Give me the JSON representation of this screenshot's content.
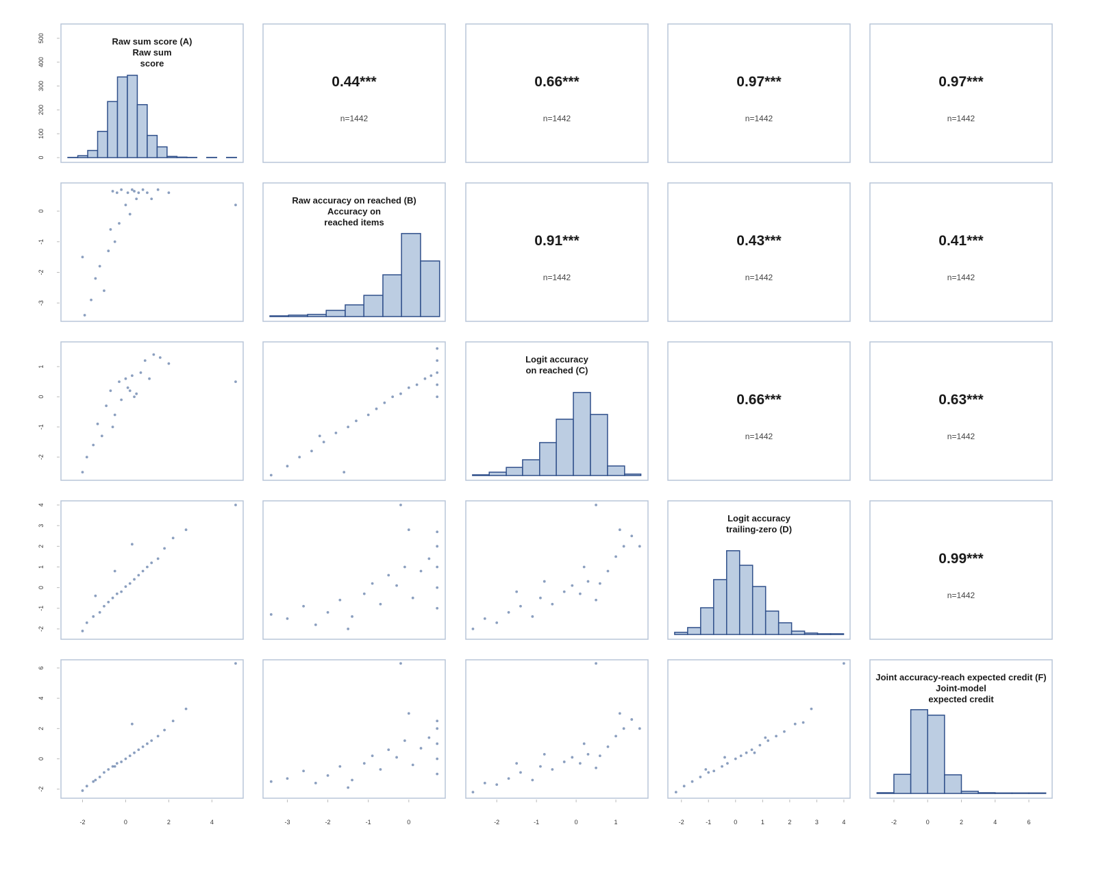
{
  "chart_data": {
    "type": "pairs",
    "color": "#3d5f94",
    "hist_fill": "#bccde2",
    "hist_stroke": "#2f4f8a",
    "frame_color": "#b9c5d8",
    "cols": [
      {
        "xlim": [
          -3.0,
          5.45
        ],
        "xticks": [
          -2,
          0,
          2,
          4
        ]
      },
      {
        "xlim": [
          -3.6,
          0.9
        ],
        "xticks": [
          -3,
          -2,
          -1,
          0
        ]
      },
      {
        "xlim": [
          -2.78,
          1.81
        ],
        "xticks": [
          -2,
          -1,
          0,
          1
        ]
      },
      {
        "xlim": [
          -2.5,
          4.23
        ],
        "xticks": [
          -2,
          -1,
          0,
          1,
          2,
          3,
          4
        ]
      },
      {
        "xlim": [
          -3.42,
          7.38
        ],
        "xticks": [
          -2,
          0,
          2,
          4,
          6
        ]
      }
    ],
    "rows": [
      {
        "ylim": [
          -20,
          560
        ],
        "yticks": [
          0,
          100,
          200,
          300,
          400,
          500
        ]
      },
      {
        "ylim": [
          -3.6,
          0.92
        ],
        "yticks": [
          -3,
          -2,
          -1,
          0
        ]
      },
      {
        "ylim": [
          -2.77,
          1.82
        ],
        "yticks": [
          -2,
          -1,
          0,
          1
        ]
      },
      {
        "ylim": [
          -2.5,
          4.2
        ],
        "yticks": [
          -2,
          -1,
          0,
          1,
          2,
          3,
          4
        ]
      },
      {
        "ylim": [
          -2.6,
          6.54
        ],
        "yticks": [
          -2,
          0,
          2,
          4,
          6
        ]
      }
    ],
    "cells": [
      [
        {
          "label": [
            "Raw sum score (A)",
            "Raw sum",
            "score"
          ],
          "bins": [
            -2.68,
            -2.22,
            -1.76,
            -1.3,
            -0.84,
            -0.38,
            0.08,
            0.54,
            1.0,
            1.46,
            1.92,
            2.38,
            2.84,
            3.3,
            3.76,
            4.22,
            4.68,
            5.14
          ],
          "counts": [
            1,
            8,
            30,
            110,
            235,
            338,
            345,
            222,
            93,
            45,
            5,
            2,
            1,
            0,
            1,
            0,
            1
          ]
        },
        {
          "r": "0.44***",
          "n": "n=1442"
        },
        {
          "r": "0.66***",
          "n": "n=1442"
        },
        {
          "r": "0.97***",
          "n": "n=1442"
        },
        {
          "r": "0.97***",
          "n": "n=1442"
        }
      ],
      [
        {
          "x": [
            -1.9,
            -1.6,
            -1.4,
            -1.2,
            -1.0,
            -0.8,
            -0.7,
            -0.5,
            -0.4,
            -0.3,
            -0.2,
            0,
            0.1,
            0.2,
            0.3,
            0.5,
            0.6,
            0.8,
            1.0,
            1.2,
            1.5,
            2.0,
            -0.6,
            0.4,
            5.1,
            -2.0
          ],
          "y": [
            -3.4,
            -2.9,
            -2.2,
            -1.8,
            -2.6,
            -1.3,
            -0.6,
            -1.0,
            0.6,
            -0.4,
            0.7,
            0.2,
            0.6,
            -0.1,
            0.7,
            0.4,
            0.6,
            0.7,
            0.6,
            0.4,
            0.7,
            0.6,
            0.65,
            0.65,
            0.2,
            -1.5
          ]
        },
        {
          "label": [
            "Raw accuracy on reached (B)",
            "Accuracy on",
            "reached items"
          ],
          "bins": [
            -3.43,
            -2.97,
            -2.5,
            -2.04,
            -1.57,
            -1.11,
            -0.64,
            -0.18,
            0.29,
            0.76
          ],
          "counts": [
            3,
            6,
            9,
            26,
            49,
            89,
            175,
            348,
            233
          ]
        },
        {
          "r": "0.91***",
          "n": "n=1442"
        },
        {
          "r": "0.43***",
          "n": "n=1442"
        },
        {
          "r": "0.41***",
          "n": "n=1442"
        }
      ],
      [
        {
          "x": [
            -2.0,
            -1.8,
            -1.5,
            -1.3,
            -1.1,
            -0.9,
            -0.7,
            -0.5,
            -0.3,
            -0.2,
            0,
            0.2,
            0.3,
            0.5,
            0.7,
            0.9,
            1.1,
            1.3,
            1.6,
            2.0,
            -0.6,
            0.1,
            0.4,
            5.1
          ],
          "y": [
            -2.5,
            -2.0,
            -1.6,
            -0.9,
            -1.3,
            -0.3,
            0.2,
            -0.6,
            0.5,
            -0.1,
            0.6,
            0.2,
            0.7,
            0.1,
            0.8,
            1.2,
            0.6,
            1.4,
            1.3,
            1.1,
            -1.0,
            0.3,
            0.0,
            0.5
          ]
        },
        {
          "x": [
            -3.4,
            -3.0,
            -2.7,
            -2.4,
            -2.1,
            -1.8,
            -1.5,
            -1.3,
            -1.0,
            -0.8,
            -0.6,
            -0.4,
            -0.2,
            0,
            0.2,
            0.4,
            0.55,
            0.7,
            0.7,
            0.7,
            0.7,
            0.7,
            -1.6,
            -2.2
          ],
          "y": [
            -2.6,
            -2.3,
            -2.0,
            -1.8,
            -1.5,
            -1.2,
            -1.0,
            -0.8,
            -0.6,
            -0.4,
            -0.2,
            0,
            0.1,
            0.3,
            0.4,
            0.6,
            0.7,
            1.6,
            1.2,
            0.8,
            0.4,
            0,
            -2.5,
            -1.3
          ]
        },
        {
          "label": [
            "Logit accuracy",
            "on reached (C)"
          ],
          "bins": [
            -2.61,
            -2.19,
            -1.76,
            -1.35,
            -0.92,
            -0.5,
            -0.07,
            0.36,
            0.79,
            1.22,
            1.63
          ],
          "counts": [
            3,
            14,
            34,
            66,
            138,
            236,
            348,
            256,
            40,
            6
          ]
        },
        {
          "r": "0.66***",
          "n": "n=1442"
        },
        {
          "r": "0.63***",
          "n": "n=1442"
        }
      ],
      [
        {
          "x": [
            -2.0,
            -1.8,
            -1.5,
            -1.2,
            -1.0,
            -0.8,
            -0.6,
            -0.4,
            -0.2,
            0,
            0.2,
            0.4,
            0.6,
            0.8,
            1.0,
            1.2,
            1.5,
            1.8,
            2.2,
            2.8,
            5.1,
            -0.5,
            0.3,
            -1.4
          ],
          "y": [
            -2.1,
            -1.7,
            -1.4,
            -1.2,
            -0.9,
            -0.7,
            -0.5,
            -0.3,
            -0.2,
            0.05,
            0.2,
            0.4,
            0.6,
            0.8,
            1.0,
            1.2,
            1.4,
            1.9,
            2.4,
            2.8,
            4.0,
            0.8,
            2.1,
            -0.4
          ]
        },
        {
          "x": [
            -3.4,
            -3.0,
            -2.6,
            -2.3,
            -2.0,
            -1.7,
            -1.4,
            -1.1,
            -0.9,
            -0.7,
            -0.5,
            -0.3,
            -0.1,
            0.1,
            0.3,
            0.5,
            0.7,
            0.7,
            0.7,
            0.7,
            0.7,
            -0.2,
            0,
            -1.5
          ],
          "y": [
            -1.3,
            -1.5,
            -0.9,
            -1.8,
            -1.2,
            -0.6,
            -1.4,
            -0.3,
            0.2,
            -0.8,
            0.6,
            0.1,
            1.0,
            -0.5,
            0.8,
            1.4,
            2.0,
            1.0,
            0,
            -1,
            2.7,
            4.0,
            2.8,
            -2.0
          ]
        },
        {
          "x": [
            -2.6,
            -2.3,
            -2.0,
            -1.7,
            -1.4,
            -1.1,
            -0.9,
            -0.6,
            -0.3,
            -0.1,
            0.1,
            0.3,
            0.5,
            0.6,
            0.8,
            1.0,
            1.2,
            1.4,
            1.6,
            0.5,
            -0.8,
            0.2,
            1.1,
            -1.5
          ],
          "y": [
            -2.0,
            -1.5,
            -1.7,
            -1.2,
            -0.9,
            -1.4,
            -0.5,
            -0.8,
            -0.2,
            0.1,
            -0.3,
            0.3,
            -0.6,
            0.2,
            0.8,
            1.5,
            2.0,
            2.5,
            2.0,
            4.0,
            0.3,
            1.0,
            2.8,
            -0.2
          ]
        },
        {
          "label": [
            "Logit accuracy",
            "trailing-zero (D)"
          ],
          "bins": [
            -2.25,
            -1.77,
            -1.29,
            -0.81,
            -0.33,
            0.15,
            0.63,
            1.11,
            1.59,
            2.07,
            2.55,
            3.03,
            3.51,
            3.99
          ],
          "counts": [
            9,
            29,
            112,
            230,
            351,
            290,
            201,
            98,
            49,
            14,
            6,
            3,
            3
          ]
        },
        {
          "r": "0.99***",
          "n": "n=1442"
        }
      ],
      [
        {
          "x": [
            -2.0,
            -1.8,
            -1.5,
            -1.2,
            -1.0,
            -0.8,
            -0.6,
            -0.4,
            -0.2,
            0,
            0.2,
            0.4,
            0.6,
            0.8,
            1.0,
            1.2,
            1.5,
            1.8,
            2.2,
            2.8,
            5.1,
            -0.5,
            0.3,
            -1.4
          ],
          "y": [
            -2.1,
            -1.8,
            -1.5,
            -1.2,
            -0.9,
            -0.7,
            -0.5,
            -0.3,
            -0.2,
            0,
            0.2,
            0.4,
            0.6,
            0.8,
            1.0,
            1.2,
            1.5,
            1.9,
            2.5,
            3.3,
            6.3,
            -0.5,
            2.3,
            -1.4
          ]
        },
        {
          "x": [
            -3.4,
            -3.0,
            -2.6,
            -2.3,
            -2.0,
            -1.7,
            -1.4,
            -1.1,
            -0.9,
            -0.7,
            -0.5,
            -0.3,
            -0.1,
            0.1,
            0.3,
            0.5,
            0.7,
            0.7,
            0.7,
            0.7,
            0.7,
            -0.2,
            0,
            -1.5
          ],
          "y": [
            -1.5,
            -1.3,
            -0.8,
            -1.6,
            -1.1,
            -0.5,
            -1.4,
            -0.3,
            0.2,
            -0.7,
            0.6,
            0.1,
            1.2,
            -0.4,
            0.7,
            1.4,
            2.0,
            1.0,
            0,
            -1,
            2.5,
            6.3,
            3.0,
            -1.9
          ]
        },
        {
          "x": [
            -2.6,
            -2.3,
            -2.0,
            -1.7,
            -1.4,
            -1.1,
            -0.9,
            -0.6,
            -0.3,
            -0.1,
            0.1,
            0.3,
            0.5,
            0.6,
            0.8,
            1.0,
            1.2,
            1.4,
            1.6,
            0.5,
            -0.8,
            0.2,
            1.1,
            -1.5
          ],
          "y": [
            -2.2,
            -1.6,
            -1.7,
            -1.3,
            -0.9,
            -1.4,
            -0.5,
            -0.7,
            -0.2,
            0.1,
            -0.3,
            0.3,
            -0.6,
            0.2,
            0.8,
            1.5,
            2.0,
            2.6,
            2.0,
            6.3,
            0.3,
            1.0,
            3.0,
            -0.3
          ]
        },
        {
          "x": [
            -2.2,
            -1.9,
            -1.6,
            -1.3,
            -1.0,
            -0.8,
            -0.5,
            -0.3,
            0,
            0.2,
            0.4,
            0.6,
            0.9,
            1.2,
            1.5,
            1.8,
            2.2,
            2.8,
            4.0,
            -1.1,
            0.7,
            1.1,
            -0.4,
            2.5
          ],
          "y": [
            -2.2,
            -1.8,
            -1.5,
            -1.2,
            -0.9,
            -0.8,
            -0.5,
            -0.3,
            0,
            0.2,
            0.4,
            0.6,
            0.9,
            1.2,
            1.5,
            1.8,
            2.3,
            3.3,
            6.3,
            -0.7,
            0.4,
            1.4,
            0.1,
            2.4
          ]
        },
        {
          "label": [
            "Joint accuracy-reach expected credit (F)",
            "Joint-model",
            "expected credit"
          ],
          "bins": [
            -3,
            -2,
            -1,
            0,
            1,
            2,
            3,
            4,
            5,
            6,
            7
          ],
          "counts": [
            3,
            80,
            351,
            328,
            78,
            9,
            3,
            2,
            2,
            2
          ]
        }
      ]
    ]
  }
}
